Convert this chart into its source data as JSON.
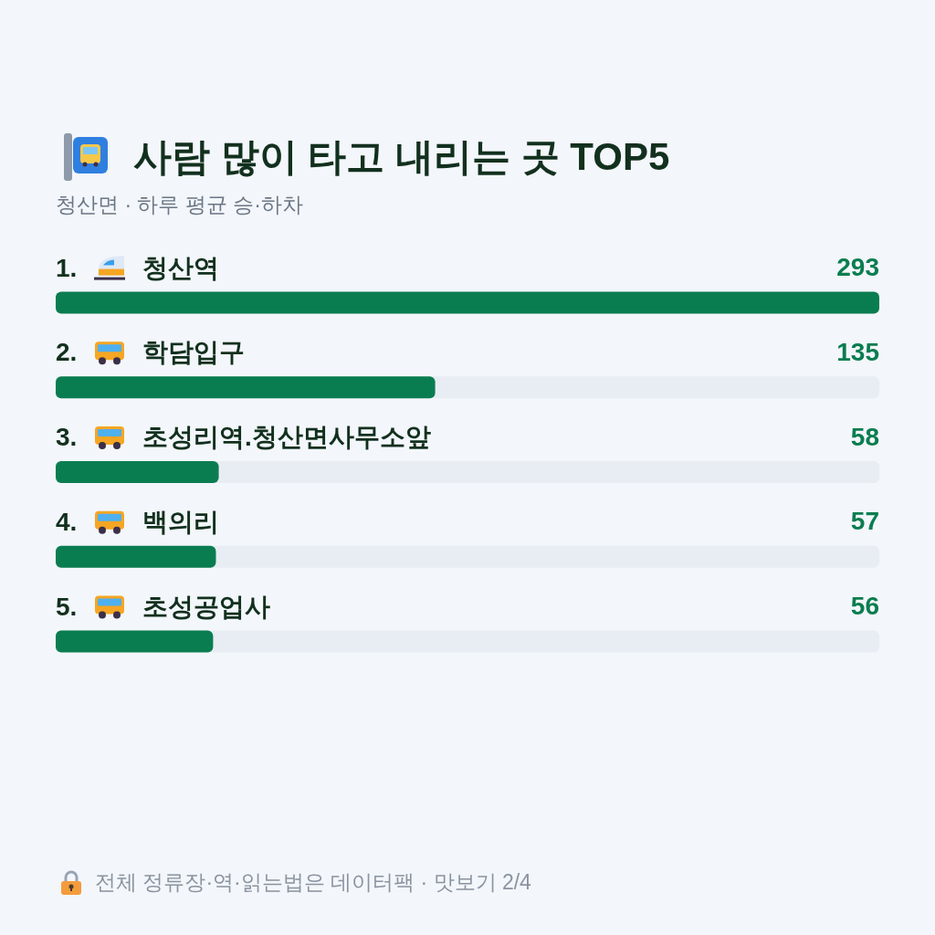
{
  "chart_data": {
    "type": "bar",
    "orientation": "horizontal",
    "title": "사람 많이 타고 내리는 곳 TOP5",
    "subtitle": "청산면 · 하루 평균 승·하차",
    "categories": [
      "1. 청산역",
      "2. 학담입구",
      "3. 초성리역.청산면사무소앞",
      "4. 백의리",
      "5. 초성공업사"
    ],
    "values": [
      293,
      135,
      58,
      57,
      56
    ],
    "color": "#0a7d50",
    "data_labels": true,
    "annotations": [
      "전체 정류장·역·읽는법은 데이터팩 · 맛보기 2/4"
    ]
  }
}
